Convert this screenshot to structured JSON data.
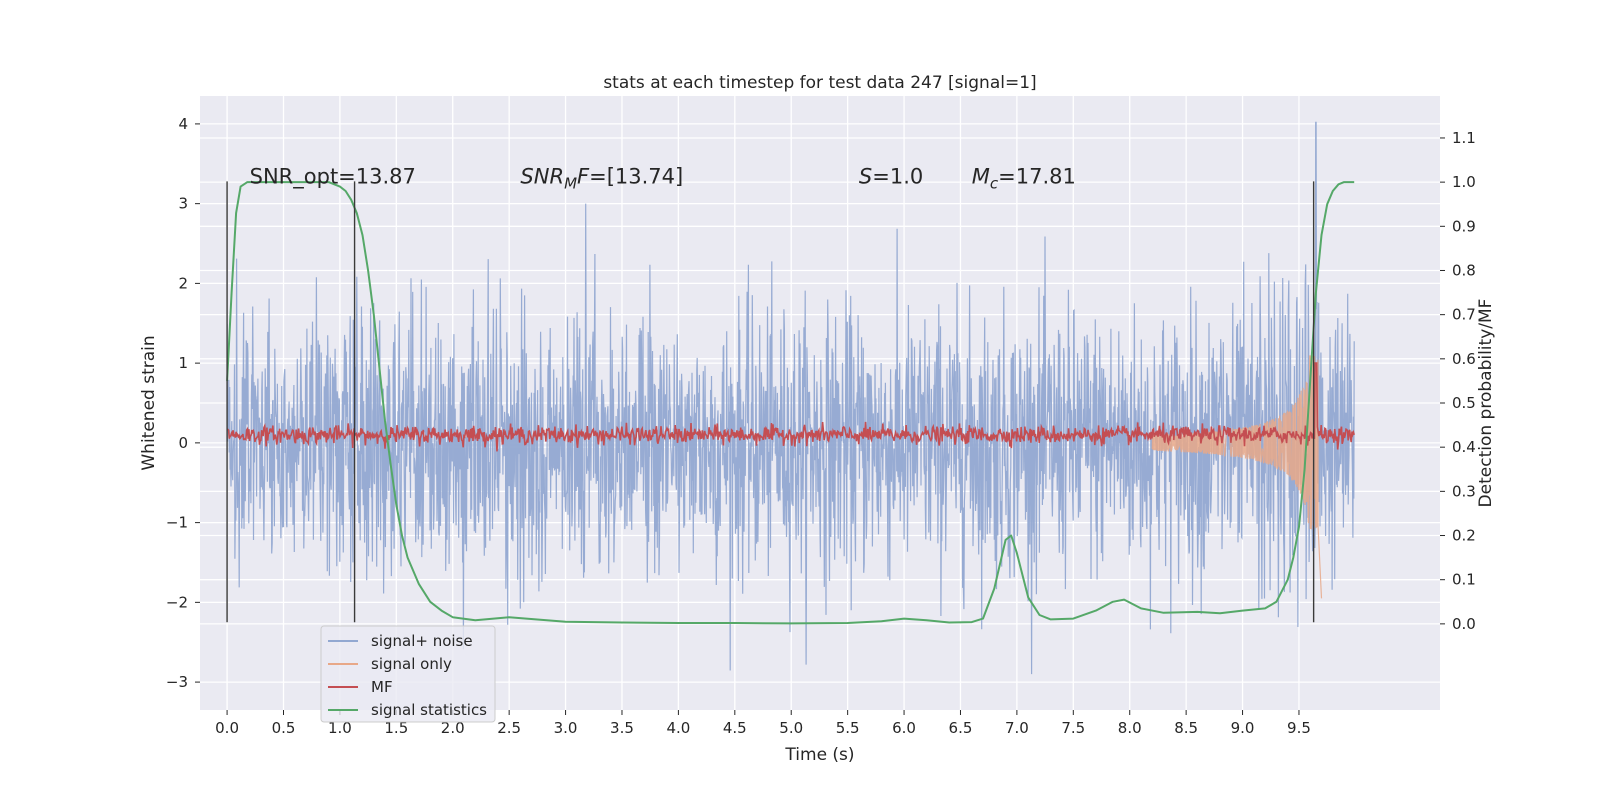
{
  "chart_data": {
    "type": "line",
    "title": "stats at each timestep for test data 247 [signal=1]",
    "xlabel": "Time (s)",
    "ylabel_left": "Whitened strain",
    "ylabel_right": "Detection probability/MF",
    "xlim": [
      -0.24,
      10.75
    ],
    "ylim_left": [
      -3.35,
      4.35
    ],
    "ylim_right": [
      -0.195,
      1.195
    ],
    "x_ticks": [
      "0.0",
      "0.5",
      "1.0",
      "1.5",
      "2.0",
      "2.5",
      "3.0",
      "3.5",
      "4.0",
      "4.5",
      "5.0",
      "5.5",
      "6.0",
      "6.5",
      "7.0",
      "7.5",
      "8.0",
      "8.5",
      "9.0",
      "9.5"
    ],
    "y_left_ticks": [
      "−3",
      "−2",
      "−1",
      "0",
      "1",
      "2",
      "3",
      "4"
    ],
    "y_right_ticks": [
      "0.0",
      "0.1",
      "0.2",
      "0.3",
      "0.4",
      "0.5",
      "0.6",
      "0.7",
      "0.8",
      "0.9",
      "1.0",
      "1.1"
    ],
    "grid": true,
    "legend_position": "bottom-left",
    "annotations": [
      {
        "text": "SNR_opt=13.87",
        "x": 0.2,
        "y": 3.25
      },
      {
        "text": "SNRMF=[13.74]",
        "x": 2.6,
        "y": 3.25
      },
      {
        "text": "S=1.0",
        "x": 5.6,
        "y": 3.25
      },
      {
        "text": "Mc=17.81",
        "x": 6.6,
        "y": 3.25
      }
    ],
    "vertical_lines": [
      {
        "x": 0.0,
        "y_range": [
          -2.25,
          3.28
        ]
      },
      {
        "x": 1.13,
        "y_range": [
          -2.25,
          3.28
        ]
      },
      {
        "x": 9.63,
        "y_range": [
          -2.25,
          3.28
        ]
      }
    ],
    "series": [
      {
        "name": "signal+ noise",
        "color": "#92a8d1",
        "axis": "left",
        "kind": "noise",
        "x_range": [
          0.0,
          9.99
        ],
        "std": 0.82,
        "peak": {
          "x": 9.65,
          "y": 4.02
        }
      },
      {
        "name": "signal only",
        "color": "#e8a888",
        "axis": "left",
        "kind": "chirp",
        "x_range": [
          8.2,
          9.67
        ],
        "peak_amplitude": 1.0
      },
      {
        "name": "MF",
        "color": "#c44e52",
        "axis": "left",
        "kind": "mf",
        "x_range": [
          0.0,
          9.99
        ],
        "mean": 0.1,
        "peak": {
          "x": 9.65,
          "y": 1.0
        }
      },
      {
        "name": "signal statistics",
        "color": "#55a868",
        "axis": "right",
        "x": [
          0.0,
          0.04,
          0.08,
          0.12,
          0.18,
          0.25,
          0.35,
          0.5,
          0.7,
          0.9,
          1.0,
          1.05,
          1.1,
          1.15,
          1.2,
          1.25,
          1.3,
          1.35,
          1.4,
          1.45,
          1.5,
          1.55,
          1.6,
          1.7,
          1.8,
          1.9,
          2.0,
          2.2,
          2.5,
          3.0,
          3.5,
          4.0,
          4.5,
          5.0,
          5.5,
          5.8,
          6.0,
          6.2,
          6.4,
          6.6,
          6.7,
          6.8,
          6.9,
          6.95,
          7.0,
          7.1,
          7.2,
          7.3,
          7.5,
          7.7,
          7.85,
          7.95,
          8.1,
          8.3,
          8.6,
          8.8,
          9.0,
          9.2,
          9.3,
          9.4,
          9.45,
          9.5,
          9.55,
          9.6,
          9.65,
          9.7,
          9.75,
          9.8,
          9.85,
          9.9,
          9.95,
          9.99
        ],
        "y": [
          0.55,
          0.75,
          0.93,
          0.99,
          1.0,
          1.0,
          1.0,
          1.0,
          1.0,
          1.0,
          0.99,
          0.98,
          0.96,
          0.93,
          0.88,
          0.8,
          0.7,
          0.58,
          0.46,
          0.36,
          0.27,
          0.2,
          0.15,
          0.09,
          0.05,
          0.03,
          0.015,
          0.008,
          0.015,
          0.005,
          0.003,
          0.002,
          0.002,
          0.001,
          0.002,
          0.006,
          0.012,
          0.008,
          0.003,
          0.004,
          0.012,
          0.08,
          0.19,
          0.2,
          0.16,
          0.06,
          0.02,
          0.01,
          0.012,
          0.03,
          0.05,
          0.055,
          0.035,
          0.025,
          0.027,
          0.024,
          0.03,
          0.035,
          0.05,
          0.1,
          0.15,
          0.22,
          0.35,
          0.55,
          0.75,
          0.88,
          0.95,
          0.98,
          0.995,
          1.0,
          1.0,
          1.0
        ]
      }
    ]
  }
}
